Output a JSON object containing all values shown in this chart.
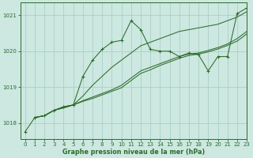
{
  "title": "Graphe pression niveau de la mer (hPa)",
  "bg_color": "#cce8e0",
  "grid_color": "#aacfc8",
  "line_color": "#2d6b2d",
  "xlim": [
    -0.5,
    23
  ],
  "ylim": [
    1017.55,
    1021.35
  ],
  "yticks": [
    1018,
    1019,
    1020,
    1021
  ],
  "xticks": [
    0,
    1,
    2,
    3,
    4,
    5,
    6,
    7,
    8,
    9,
    10,
    11,
    12,
    13,
    14,
    15,
    16,
    17,
    18,
    19,
    20,
    21,
    22,
    23
  ],
  "series_main": {
    "x": [
      0,
      1,
      2,
      3,
      4,
      5,
      6,
      7,
      8,
      9,
      10,
      11,
      12,
      13,
      14,
      15,
      16,
      17,
      18,
      19,
      20,
      21,
      22,
      23
    ],
    "y": [
      1017.75,
      1018.15,
      1018.2,
      1018.35,
      1018.45,
      1018.5,
      1019.3,
      1019.75,
      1020.05,
      1020.25,
      1020.3,
      1020.85,
      1020.6,
      1020.05,
      1020.0,
      1020.0,
      1019.85,
      1019.95,
      1019.9,
      1019.45,
      1019.85,
      1019.85,
      1021.05,
      1021.2
    ]
  },
  "series_smooth": [
    {
      "x": [
        1,
        2,
        3,
        4,
        5,
        6,
        7,
        8,
        9,
        10,
        11,
        12,
        13,
        14,
        15,
        16,
        17,
        18,
        19,
        20,
        21,
        22,
        23
      ],
      "y": [
        1018.15,
        1018.2,
        1018.35,
        1018.45,
        1018.5,
        1018.75,
        1019.05,
        1019.3,
        1019.55,
        1019.75,
        1019.95,
        1020.15,
        1020.25,
        1020.35,
        1020.45,
        1020.55,
        1020.6,
        1020.65,
        1020.7,
        1020.75,
        1020.85,
        1020.95,
        1021.1
      ]
    },
    {
      "x": [
        1,
        2,
        3,
        4,
        5,
        6,
        7,
        8,
        9,
        10,
        11,
        12,
        13,
        14,
        15,
        16,
        17,
        18,
        19,
        20,
        21,
        22,
        23
      ],
      "y": [
        1018.15,
        1018.2,
        1018.35,
        1018.42,
        1018.5,
        1018.62,
        1018.72,
        1018.82,
        1018.92,
        1019.05,
        1019.25,
        1019.45,
        1019.55,
        1019.65,
        1019.75,
        1019.85,
        1019.92,
        1019.95,
        1020.02,
        1020.1,
        1020.2,
        1020.35,
        1020.55
      ]
    },
    {
      "x": [
        1,
        2,
        3,
        4,
        5,
        6,
        7,
        8,
        9,
        10,
        11,
        12,
        13,
        14,
        15,
        16,
        17,
        18,
        19,
        20,
        21,
        22,
        23
      ],
      "y": [
        1018.15,
        1018.2,
        1018.35,
        1018.42,
        1018.5,
        1018.6,
        1018.68,
        1018.78,
        1018.88,
        1018.98,
        1019.18,
        1019.38,
        1019.48,
        1019.6,
        1019.7,
        1019.8,
        1019.88,
        1019.92,
        1019.98,
        1020.06,
        1020.16,
        1020.28,
        1020.48
      ]
    }
  ],
  "title_fontsize": 5.8,
  "tick_fontsize": 5.0
}
